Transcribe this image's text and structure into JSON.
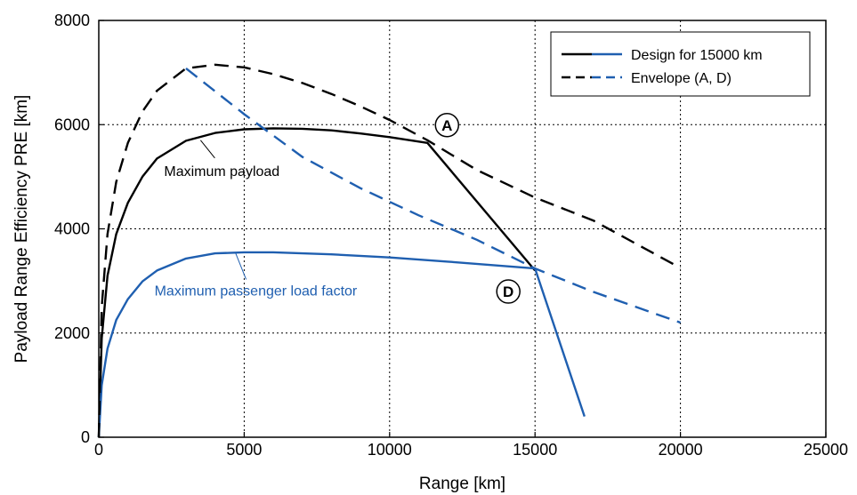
{
  "chart_data": {
    "type": "line",
    "title": "",
    "xlabel": "Range [km]",
    "ylabel": "Payload Range Efficiency PRE [km]",
    "xlim": [
      0,
      25000
    ],
    "ylim": [
      0,
      8000
    ],
    "xticks": [
      0,
      5000,
      10000,
      15000,
      20000,
      25000
    ],
    "yticks": [
      0,
      2000,
      4000,
      6000,
      8000
    ],
    "xtick_labels": [
      "0",
      "5000",
      "10000",
      "15000",
      "20000",
      "25000"
    ],
    "ytick_labels": [
      "0",
      "2000",
      "4000",
      "6000",
      "8000"
    ],
    "grid": true,
    "legend_position": "top-right",
    "legend": [
      {
        "label": "Design for 15000 km",
        "style": "solid"
      },
      {
        "label": "Envelope (A, D)",
        "style": "dashed"
      }
    ],
    "series": [
      {
        "id": "design_max_payload",
        "color": "#000000",
        "style": "solid",
        "points": [
          [
            0,
            0
          ],
          [
            100,
            1900
          ],
          [
            300,
            3100
          ],
          [
            600,
            3900
          ],
          [
            1000,
            4500
          ],
          [
            1500,
            5000
          ],
          [
            2000,
            5350
          ],
          [
            3000,
            5690
          ],
          [
            4000,
            5840
          ],
          [
            5000,
            5910
          ],
          [
            6000,
            5930
          ],
          [
            7000,
            5920
          ],
          [
            8000,
            5890
          ],
          [
            9000,
            5830
          ],
          [
            10000,
            5760
          ],
          [
            11300,
            5650
          ],
          [
            15000,
            3200
          ]
        ]
      },
      {
        "id": "design_max_load_factor",
        "color": "#1f5fb0",
        "style": "solid",
        "points": [
          [
            0,
            0
          ],
          [
            100,
            1000
          ],
          [
            300,
            1700
          ],
          [
            600,
            2250
          ],
          [
            1000,
            2650
          ],
          [
            1500,
            2990
          ],
          [
            2000,
            3200
          ],
          [
            3000,
            3430
          ],
          [
            4000,
            3530
          ],
          [
            5000,
            3550
          ],
          [
            6000,
            3550
          ],
          [
            8000,
            3510
          ],
          [
            10000,
            3450
          ],
          [
            12000,
            3370
          ],
          [
            15000,
            3240
          ],
          [
            16700,
            400
          ]
        ]
      },
      {
        "id": "envelope_max_payload",
        "color": "#000000",
        "style": "dashed",
        "points": [
          [
            0,
            0
          ],
          [
            100,
            2500
          ],
          [
            300,
            3900
          ],
          [
            600,
            4900
          ],
          [
            1000,
            5650
          ],
          [
            1500,
            6250
          ],
          [
            2000,
            6650
          ],
          [
            3000,
            7080
          ],
          [
            4000,
            7150
          ],
          [
            5000,
            7100
          ],
          [
            6000,
            6970
          ],
          [
            7000,
            6800
          ],
          [
            8000,
            6590
          ],
          [
            9000,
            6350
          ],
          [
            10000,
            6090
          ],
          [
            11300,
            5700
          ],
          [
            13000,
            5130
          ],
          [
            15000,
            4600
          ],
          [
            17000,
            4160
          ],
          [
            20000,
            3250
          ]
        ]
      },
      {
        "id": "envelope_max_load_factor",
        "color": "#1f5fb0",
        "style": "dashed",
        "points": [
          [
            3000,
            7080
          ],
          [
            5000,
            6200
          ],
          [
            7000,
            5380
          ],
          [
            9000,
            4780
          ],
          [
            11000,
            4260
          ],
          [
            13000,
            3790
          ],
          [
            15000,
            3240
          ],
          [
            17000,
            2790
          ],
          [
            20000,
            2200
          ]
        ]
      }
    ],
    "annotations": [
      {
        "text": "Maximum payload",
        "color": "#000000",
        "at": [
          3500,
          5700
        ]
      },
      {
        "text": "Maximum passenger load factor",
        "color": "#1f5fb0",
        "at": [
          4700,
          3540
        ]
      }
    ],
    "points_marked": [
      {
        "label": "A",
        "at": [
          11300,
          5650
        ]
      },
      {
        "label": "D",
        "at": [
          15000,
          3240
        ]
      }
    ]
  }
}
